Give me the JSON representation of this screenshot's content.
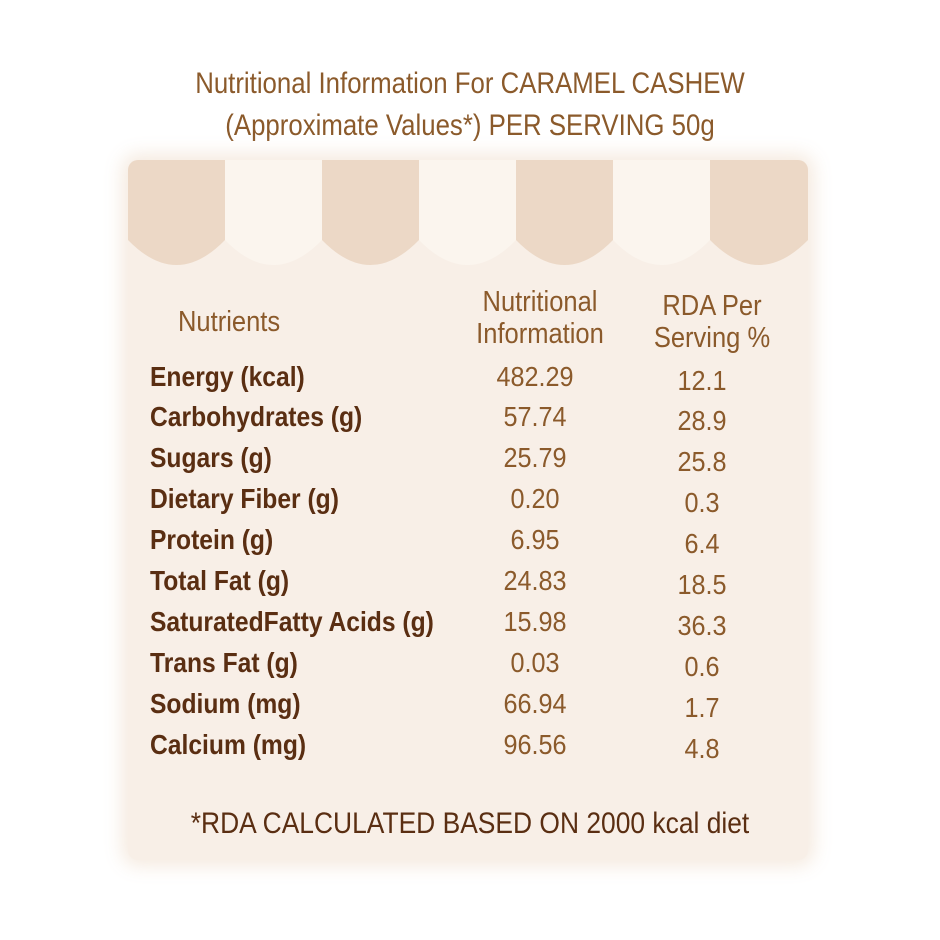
{
  "title": {
    "line1": "Nutritional Information For CARAMEL CASHEW",
    "line2": "(Approximate Values*) PER SERVING 50g"
  },
  "table": {
    "headers": {
      "nutrients": "Nutrients",
      "info_line1": "Nutritional",
      "info_line2": "Information",
      "rda_line1": "RDA Per",
      "rda_line2": "Serving %"
    },
    "rows": [
      {
        "nutrient": "Energy (kcal)",
        "value": "482.29",
        "rda": "12.1"
      },
      {
        "nutrient": "Carbohydrates (g)",
        "value": "57.74",
        "rda": "28.9"
      },
      {
        "nutrient": "Sugars (g)",
        "value": "25.79",
        "rda": "25.8"
      },
      {
        "nutrient": "Dietary Fiber (g)",
        "value": "0.20",
        "rda": "0.3"
      },
      {
        "nutrient": "Protein (g)",
        "value": "6.95",
        "rda": "6.4"
      },
      {
        "nutrient": "Total Fat (g)",
        "value": "24.83",
        "rda": "18.5"
      },
      {
        "nutrient": "SaturatedFatty Acids (g)",
        "value": "15.98",
        "rda": "36.3"
      },
      {
        "nutrient": "Trans Fat (g)",
        "value": "0.03",
        "rda": "0.6"
      },
      {
        "nutrient": "Sodium (mg)",
        "value": "66.94",
        "rda": "1.7"
      },
      {
        "nutrient": "Calcium (mg)",
        "value": "96.56",
        "rda": "4.8"
      }
    ]
  },
  "footnote": "*RDA CALCULATED BASED ON 2000 kcal diet",
  "colors": {
    "heading_brown": "#8b5a2b",
    "nutrient_dark_brown": "#5a2e12",
    "card_background": "#f8efe7",
    "awning_dark": "#ecd8c6",
    "awning_light": "#fbf5ee"
  }
}
